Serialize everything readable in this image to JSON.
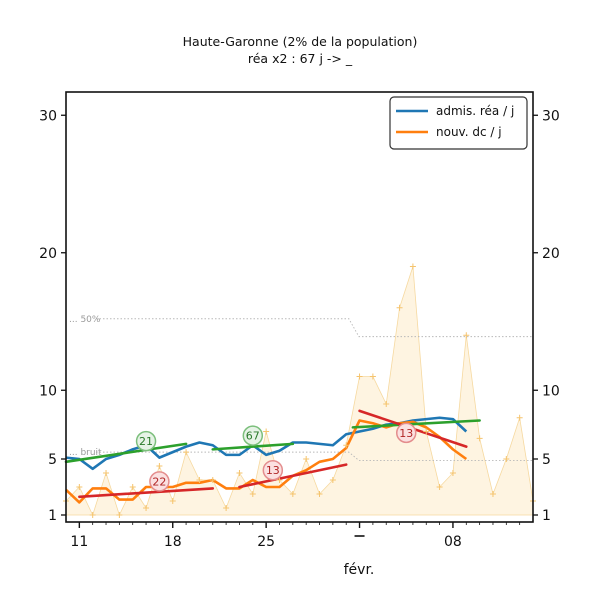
{
  "chart_data": {
    "type": "line",
    "title": "Haute-Garonne (2% de la population)",
    "subtitle": "réa x2 : 67 j -> _",
    "xlabel": "févr.",
    "x_ticks": [
      "11",
      "18",
      "25",
      "",
      "08"
    ],
    "x_tick_days": [
      0,
      7,
      14,
      21,
      28
    ],
    "x_range_days": [
      -1,
      34
    ],
    "ylim": [
      0,
      32
    ],
    "y_ticks": [
      1,
      5,
      10,
      20,
      30
    ],
    "y_ticks_display": [
      "1",
      "5",
      "10",
      "20",
      "30"
    ],
    "grid": false,
    "legend_position": "top-right",
    "legend": [
      {
        "label": "admis. réa / j",
        "color": "#1f77b4"
      },
      {
        "label": "nouv. dc / j",
        "color": "#ff7f0e"
      }
    ],
    "reference_lines": [
      {
        "label": "50%",
        "before": 15.2,
        "after": 13.9,
        "switch_day": 20.5
      },
      {
        "label": "bruit",
        "before": 5.5,
        "after": 4.9,
        "switch_day": 20.5
      }
    ],
    "series": [
      {
        "color": "#1f77b4",
        "x": [
          -1,
          0,
          1,
          2,
          3,
          4,
          5,
          6,
          7,
          8,
          9,
          10,
          11,
          12,
          13,
          14,
          15,
          16,
          17,
          18,
          19,
          20,
          21,
          22,
          23,
          24,
          25,
          26,
          27,
          28,
          29
        ],
        "values": [
          5.1,
          5.0,
          4.3,
          5.0,
          5.3,
          5.7,
          6.0,
          5.1,
          5.5,
          5.9,
          6.2,
          6.0,
          5.3,
          5.3,
          6.0,
          5.3,
          5.6,
          6.2,
          6.2,
          6.1,
          6.0,
          6.8,
          7.0,
          7.2,
          7.5,
          7.6,
          7.8,
          7.9,
          8.0,
          7.9,
          7.0
        ]
      },
      {
        "color": "#ff7f0e",
        "x": [
          -1,
          0,
          1,
          2,
          3,
          4,
          5,
          6,
          7,
          8,
          9,
          10,
          11,
          12,
          13,
          14,
          15,
          16,
          17,
          18,
          19,
          20,
          21,
          22,
          23,
          24,
          25,
          26,
          27,
          28,
          29
        ],
        "values": [
          2.8,
          1.9,
          2.9,
          2.9,
          2.1,
          2.1,
          3.0,
          3.0,
          3.0,
          3.3,
          3.3,
          3.5,
          2.9,
          2.9,
          3.5,
          3.0,
          3.0,
          3.8,
          4.2,
          4.8,
          5.0,
          5.8,
          7.8,
          7.6,
          7.3,
          7.6,
          7.7,
          7.3,
          6.6,
          5.7,
          5.0
        ]
      }
    ],
    "daily_points": {
      "x": [
        -1,
        0,
        1,
        2,
        3,
        4,
        5,
        6,
        7,
        8,
        9,
        10,
        11,
        12,
        13,
        14,
        15,
        16,
        17,
        18,
        19,
        20,
        21,
        22,
        23,
        24,
        25,
        26,
        27,
        28,
        29,
        30,
        31,
        32,
        33,
        34
      ],
      "values": [
        2.0,
        3.0,
        1.0,
        4.0,
        1.0,
        3.0,
        1.5,
        4.5,
        2.0,
        5.5,
        3.5,
        3.5,
        1.5,
        4.0,
        2.5,
        7.0,
        3.5,
        2.5,
        5.0,
        2.5,
        3.5,
        6.0,
        11.0,
        11.0,
        9.0,
        16.0,
        19.0,
        7.0,
        3.0,
        4.0,
        14.0,
        6.5,
        2.5,
        5.0,
        8.0,
        2.0
      ]
    },
    "trends": [
      {
        "color": "#2ca02c",
        "x": [
          -1,
          8
        ],
        "values": [
          4.8,
          6.1
        ],
        "label": "21"
      },
      {
        "color": "#2ca02c",
        "x": [
          10,
          16
        ],
        "values": [
          5.7,
          6.1
        ],
        "label": "67"
      },
      {
        "color": "#2ca02c",
        "x": [
          20.5,
          30
        ],
        "values": [
          7.3,
          7.8
        ],
        "label": ""
      },
      {
        "color": "#d62728",
        "x": [
          0,
          10
        ],
        "values": [
          2.3,
          2.9
        ],
        "label": "22"
      },
      {
        "color": "#d62728",
        "x": [
          12,
          20
        ],
        "values": [
          3.0,
          4.6
        ],
        "label": "13"
      },
      {
        "color": "#d62728",
        "x": [
          21,
          29
        ],
        "values": [
          8.5,
          5.9
        ],
        "label": "13"
      }
    ],
    "badge_positions": [
      [
        5,
        6.3
      ],
      [
        13,
        6.7
      ],
      [
        6,
        3.4
      ],
      [
        14.5,
        4.2
      ],
      [
        24.5,
        6.9
      ]
    ]
  }
}
